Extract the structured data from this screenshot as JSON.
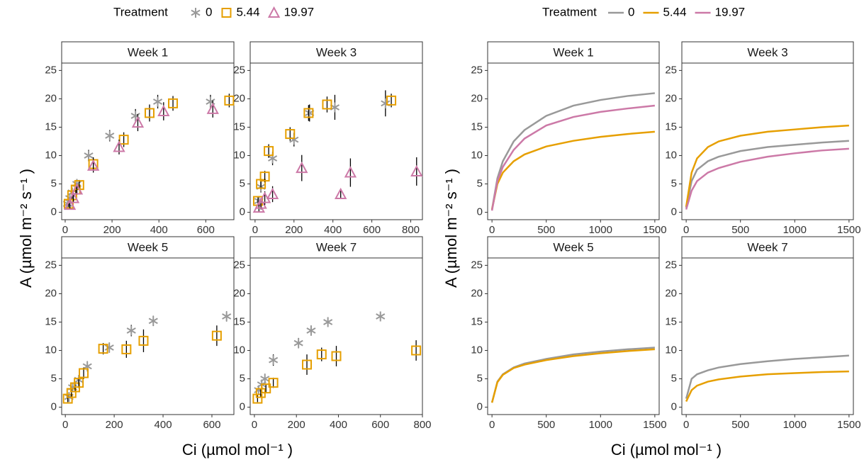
{
  "figure_labels": [
    {
      "legend_title": "Treatment",
      "x_label": "Ci (µmol mol⁻¹ )",
      "y_label": "A (µmol m⁻² s⁻¹ )"
    },
    {
      "legend_title": "Treatment",
      "x_label": "Ci (µmol mol⁻¹ )",
      "y_label": "A (µmol m⁻² s⁻¹ )"
    }
  ],
  "chart_data": [
    {
      "type": "scatter",
      "title": "Week 1",
      "xlim": [
        -15,
        720
      ],
      "xticks": [
        0,
        200,
        400,
        600
      ],
      "ylim": [
        -1.3,
        26.3
      ],
      "yticks": [
        0,
        5,
        10,
        15,
        20,
        25
      ],
      "series": [
        {
          "name": "0",
          "color": "#999999",
          "shape": "asterisk",
          "x": [
            10,
            20,
            30,
            50,
            100,
            190,
            300,
            395,
            620
          ],
          "values": [
            1.5,
            2.5,
            3.5,
            5,
            10,
            13.5,
            17,
            19.5,
            19.5
          ],
          "errors": [
            0.6,
            0.6,
            0.8,
            0.8,
            1,
            1,
            1.2,
            1.2,
            1.2
          ]
        },
        {
          "name": "5.44",
          "color": "#E69F00",
          "shape": "square",
          "x": [
            15,
            30,
            45,
            60,
            120,
            250,
            360,
            460,
            700
          ],
          "values": [
            1.5,
            3,
            4,
            4.8,
            8.5,
            12.8,
            17.5,
            19.2,
            19.7
          ],
          "errors": [
            0.6,
            0.7,
            0.8,
            0.9,
            1.2,
            1.3,
            1.5,
            1.3,
            1.2
          ]
        },
        {
          "name": "19.97",
          "color": "#CC79A7",
          "shape": "triangle",
          "x": [
            20,
            35,
            50,
            120,
            230,
            310,
            420,
            630
          ],
          "values": [
            1.3,
            2.5,
            4,
            8.2,
            11.5,
            15.8,
            17.8,
            18.2
          ],
          "errors": [
            0.6,
            0.7,
            0.9,
            1.2,
            1.3,
            1.5,
            1.6,
            1.5
          ]
        }
      ]
    },
    {
      "type": "scatter",
      "title": "Week 3",
      "xlim": [
        -25,
        860
      ],
      "xticks": [
        0,
        200,
        400,
        600,
        800
      ],
      "ylim": [
        -1.3,
        26.3
      ],
      "yticks": [
        0,
        5,
        10,
        15,
        20,
        25
      ],
      "series": [
        {
          "name": "0",
          "color": "#999999",
          "shape": "asterisk",
          "x": [
            20,
            30,
            90,
            200,
            280,
            410,
            670
          ],
          "values": [
            2,
            4.5,
            9.5,
            12.8,
            17.5,
            18.5,
            19.2
          ],
          "errors": [
            0.8,
            1,
            1.2,
            1.2,
            1.5,
            2.2,
            2.3
          ]
        },
        {
          "name": "5.44",
          "color": "#E69F00",
          "shape": "square",
          "x": [
            15,
            30,
            50,
            70,
            180,
            275,
            370,
            700
          ],
          "values": [
            2,
            5,
            6.3,
            10.8,
            13.8,
            17.5,
            19,
            19.7
          ],
          "errors": [
            0.7,
            0.9,
            1,
            1.2,
            1.2,
            1.4,
            1.4,
            1.2
          ]
        },
        {
          "name": "19.97",
          "color": "#CC79A7",
          "shape": "triangle",
          "x": [
            20,
            30,
            50,
            90,
            240,
            440,
            490,
            830
          ],
          "values": [
            0.8,
            1.5,
            2.5,
            3.2,
            7.8,
            3.2,
            7,
            7.2
          ],
          "errors": [
            0.8,
            1,
            1.2,
            1.4,
            2.3,
            0.8,
            2.5,
            2.5
          ]
        }
      ]
    },
    {
      "type": "scatter",
      "title": "Week 5",
      "xlim": [
        -15,
        690
      ],
      "xticks": [
        0,
        200,
        400,
        600
      ],
      "ylim": [
        -1.3,
        26.3
      ],
      "yticks": [
        0,
        5,
        10,
        15,
        20,
        25
      ],
      "series": [
        {
          "name": "0",
          "color": "#999999",
          "shape": "asterisk",
          "x": [
            15,
            30,
            55,
            90,
            180,
            270,
            360,
            660
          ],
          "values": [
            1.8,
            3.5,
            4.8,
            7.2,
            10.5,
            13.5,
            15.2,
            16
          ],
          "errors": [
            0.6,
            0.7,
            0.8,
            0.9,
            0.9,
            1,
            0.9,
            0.9
          ]
        },
        {
          "name": "5.44",
          "color": "#E69F00",
          "shape": "square",
          "x": [
            10,
            25,
            40,
            55,
            75,
            155,
            250,
            320,
            620
          ],
          "values": [
            1.5,
            2.5,
            3.5,
            4.3,
            6,
            10.3,
            10.2,
            11.7,
            12.6
          ],
          "errors": [
            0.6,
            0.7,
            0.8,
            0.9,
            1,
            1,
            1.5,
            2,
            1.8
          ]
        }
      ]
    },
    {
      "type": "scatter",
      "title": "Week 7",
      "xlim": [
        -20,
        800
      ],
      "xticks": [
        0,
        200,
        400,
        600,
        800
      ],
      "ylim": [
        -1.3,
        26.3
      ],
      "yticks": [
        0,
        5,
        10,
        15,
        20,
        25
      ],
      "series": [
        {
          "name": "0",
          "color": "#999999",
          "shape": "asterisk",
          "x": [
            20,
            35,
            50,
            90,
            210,
            270,
            350,
            600
          ],
          "values": [
            3,
            4,
            5,
            8.3,
            11.3,
            13.5,
            15,
            16
          ],
          "errors": [
            0.7,
            0.8,
            0.9,
            1,
            0.9,
            0.9,
            0.8,
            0.8
          ]
        },
        {
          "name": "5.44",
          "color": "#E69F00",
          "shape": "square",
          "x": [
            15,
            30,
            55,
            90,
            250,
            320,
            390,
            770
          ],
          "values": [
            1.5,
            2.5,
            3.3,
            4.3,
            7.5,
            9.3,
            9,
            10
          ],
          "errors": [
            0.6,
            0.7,
            0.8,
            0.9,
            1.8,
            1.2,
            1.8,
            1.8
          ]
        }
      ]
    },
    {
      "type": "line",
      "title": "Week 1",
      "xlim": [
        -40,
        1540
      ],
      "xticks": [
        0,
        500,
        1000,
        1500
      ],
      "ylim": [
        -1.3,
        26.3
      ],
      "yticks": [
        0,
        5,
        10,
        15,
        20,
        25
      ],
      "x": [
        0,
        50,
        100,
        200,
        300,
        500,
        750,
        1000,
        1250,
        1500
      ],
      "series": [
        {
          "name": "0",
          "color": "#999999",
          "values": [
            0.5,
            6,
            9,
            12.5,
            14.5,
            17,
            18.8,
            19.8,
            20.5,
            21
          ]
        },
        {
          "name": "5.44",
          "color": "#E69F00",
          "values": [
            0.5,
            5,
            7,
            9,
            10.2,
            11.6,
            12.6,
            13.3,
            13.8,
            14.2
          ]
        },
        {
          "name": "19.97",
          "color": "#CC79A7",
          "values": [
            0.3,
            5.5,
            8,
            11,
            13,
            15.3,
            16.8,
            17.7,
            18.3,
            18.8
          ]
        }
      ]
    },
    {
      "type": "line",
      "title": "Week 3",
      "xlim": [
        -40,
        1540
      ],
      "xticks": [
        0,
        500,
        1000,
        1500
      ],
      "ylim": [
        -1.3,
        26.3
      ],
      "yticks": [
        0,
        5,
        10,
        15,
        20,
        25
      ],
      "x": [
        0,
        50,
        100,
        200,
        300,
        500,
        750,
        1000,
        1250,
        1500
      ],
      "series": [
        {
          "name": "0",
          "color": "#999999",
          "values": [
            0.8,
            5.5,
            7.5,
            9,
            9.8,
            10.8,
            11.5,
            11.9,
            12.3,
            12.6
          ]
        },
        {
          "name": "5.44",
          "color": "#E69F00",
          "values": [
            1,
            7,
            9.5,
            11.5,
            12.5,
            13.5,
            14.2,
            14.6,
            15,
            15.3
          ]
        },
        {
          "name": "19.97",
          "color": "#CC79A7",
          "values": [
            0.5,
            3.8,
            5.5,
            7,
            7.8,
            8.9,
            9.8,
            10.4,
            10.9,
            11.2
          ]
        }
      ]
    },
    {
      "type": "line",
      "title": "Week 5",
      "xlim": [
        -40,
        1540
      ],
      "xticks": [
        0,
        500,
        1000,
        1500
      ],
      "ylim": [
        -1.3,
        26.3
      ],
      "yticks": [
        0,
        5,
        10,
        15,
        20,
        25
      ],
      "x": [
        0,
        50,
        100,
        200,
        300,
        500,
        750,
        1000,
        1250,
        1500
      ],
      "series": [
        {
          "name": "0",
          "color": "#999999",
          "values": [
            0.8,
            4.5,
            5.8,
            7,
            7.7,
            8.5,
            9.3,
            9.8,
            10.2,
            10.5
          ]
        },
        {
          "name": "5.44",
          "color": "#E69F00",
          "values": [
            0.8,
            4.4,
            5.7,
            6.9,
            7.5,
            8.3,
            9,
            9.5,
            9.9,
            10.2
          ]
        }
      ]
    },
    {
      "type": "line",
      "title": "Week 7",
      "xlim": [
        -40,
        1540
      ],
      "xticks": [
        0,
        500,
        1000,
        1500
      ],
      "ylim": [
        -1.3,
        26.3
      ],
      "yticks": [
        0,
        5,
        10,
        15,
        20,
        25
      ],
      "x": [
        0,
        50,
        100,
        200,
        300,
        500,
        750,
        1000,
        1250,
        1500
      ],
      "series": [
        {
          "name": "0",
          "color": "#999999",
          "values": [
            1.5,
            5,
            5.8,
            6.5,
            7,
            7.6,
            8.1,
            8.5,
            8.8,
            9.1
          ]
        },
        {
          "name": "5.44",
          "color": "#E69F00",
          "values": [
            1,
            3,
            3.8,
            4.5,
            4.9,
            5.4,
            5.8,
            6,
            6.2,
            6.3
          ]
        }
      ]
    }
  ]
}
